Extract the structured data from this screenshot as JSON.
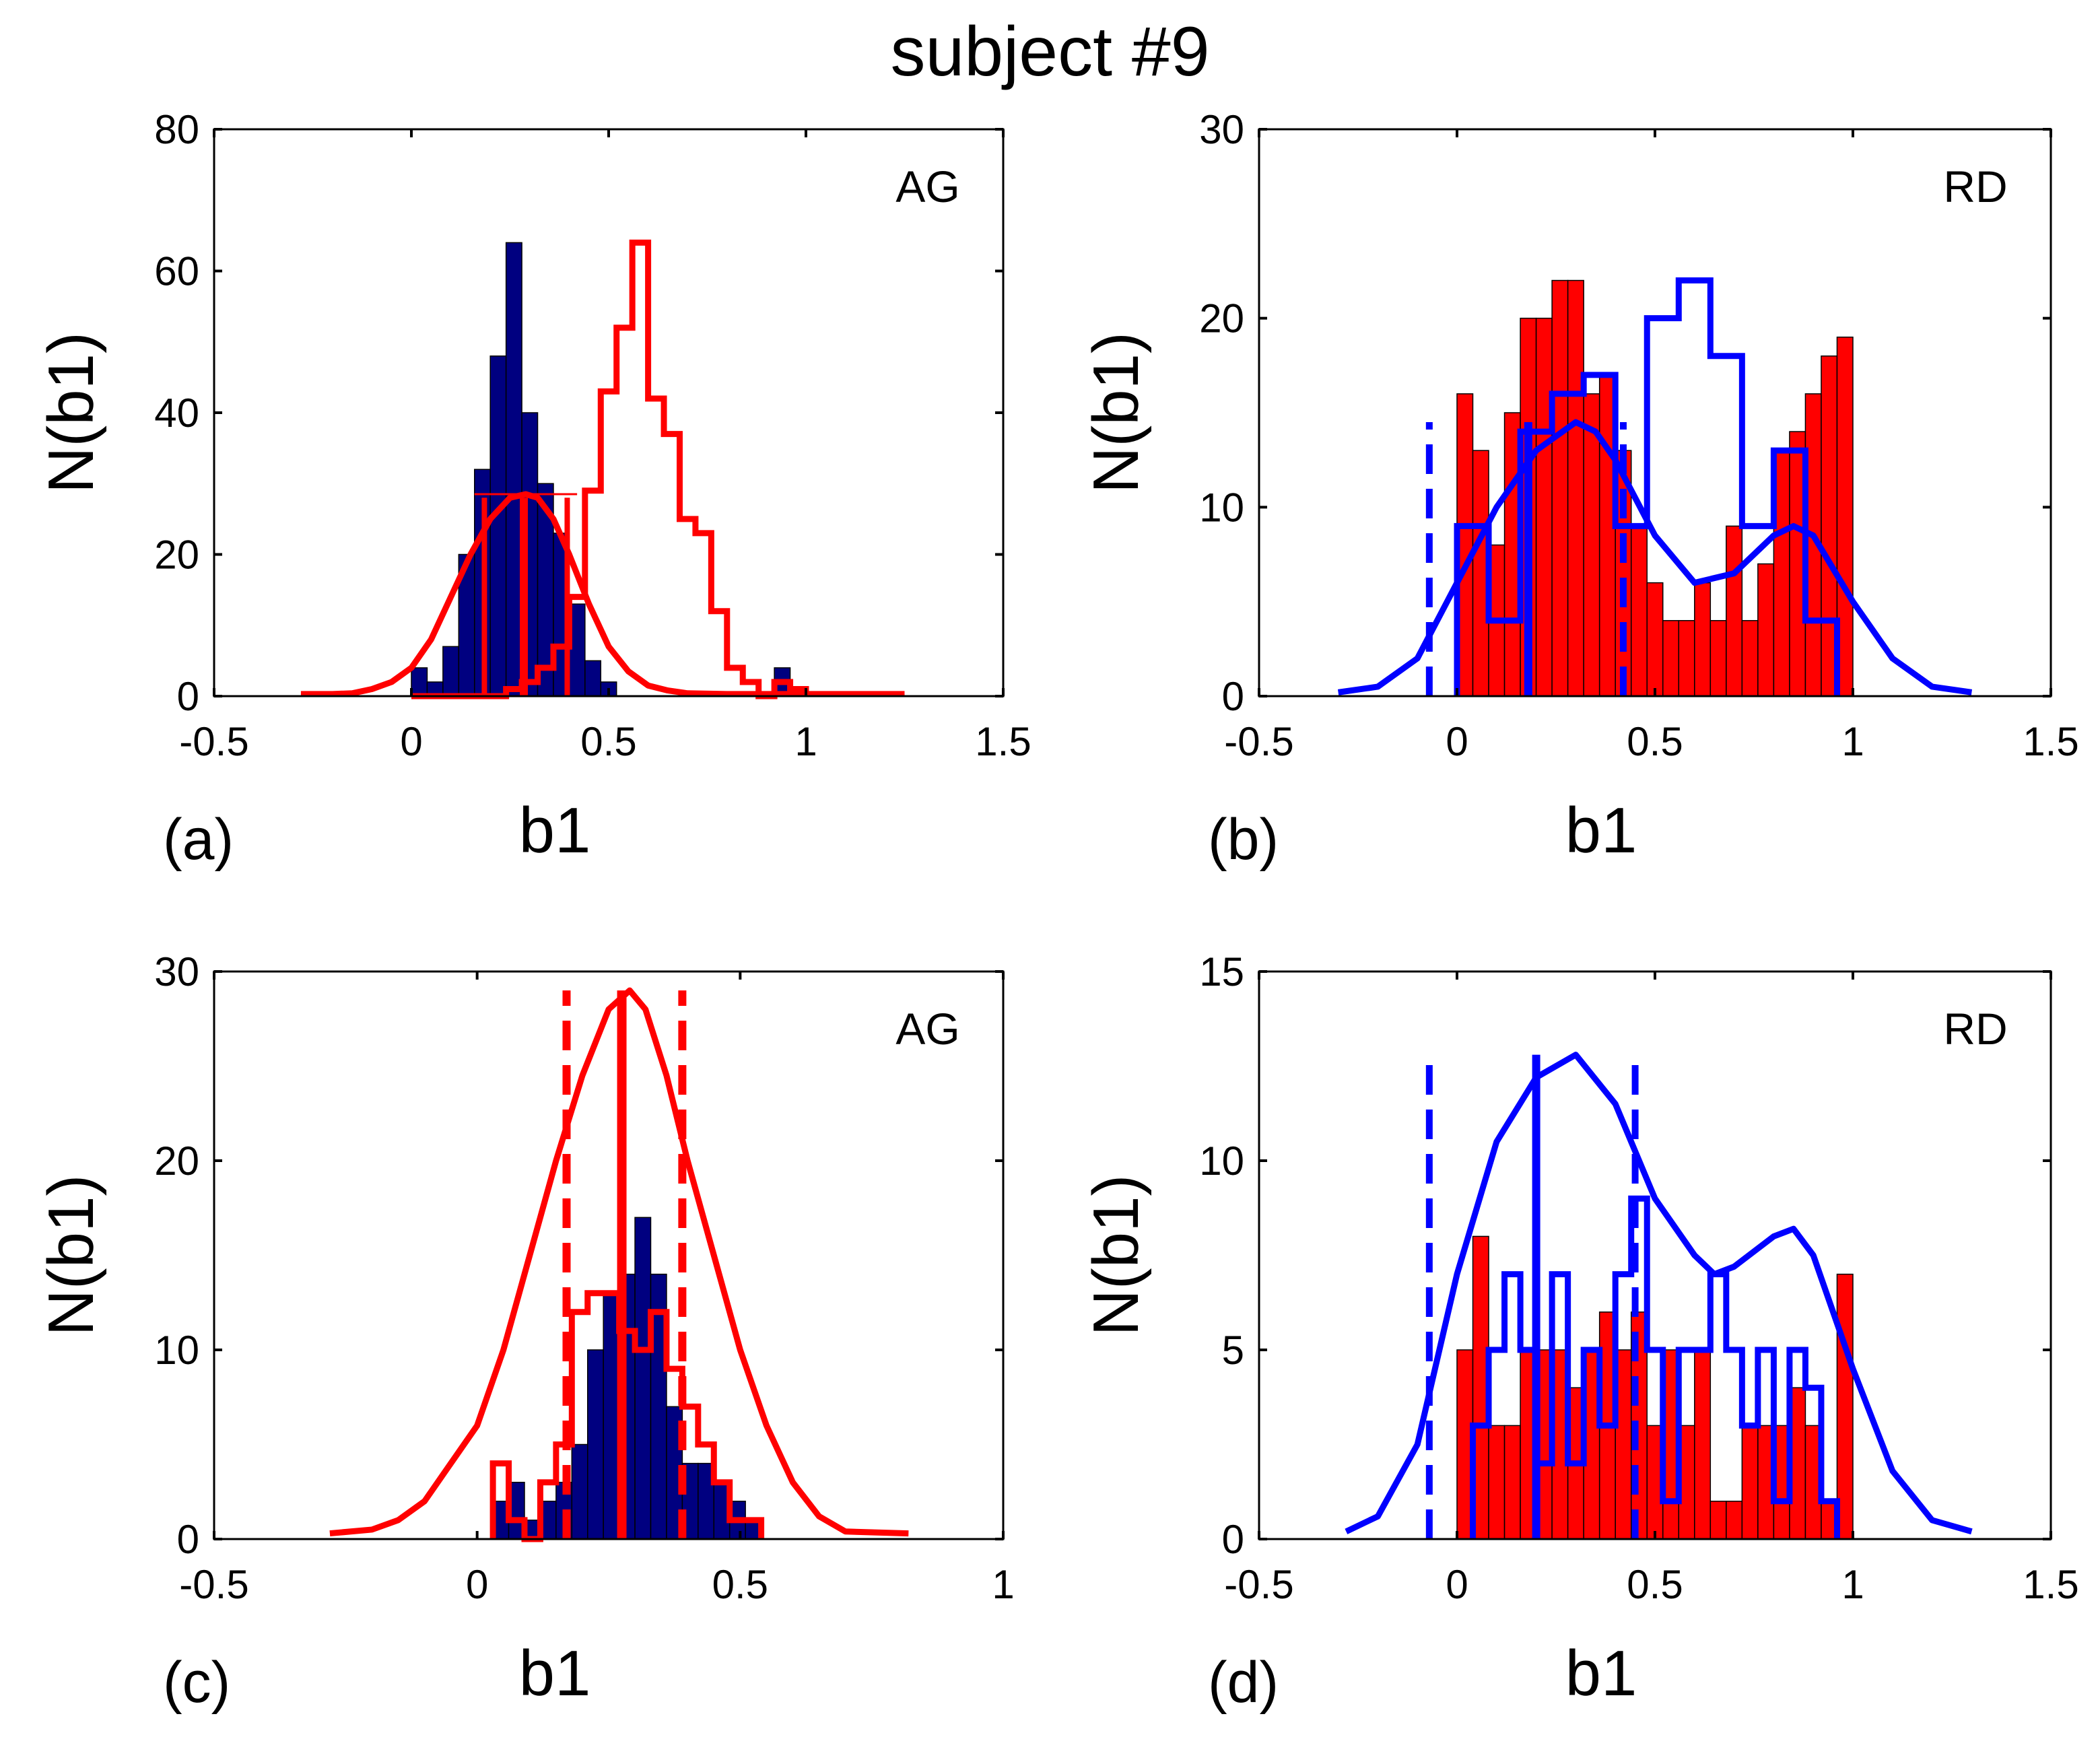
{
  "figure_title": "subject #9",
  "colors": {
    "navy": "#000080",
    "red": "#ff0000",
    "blue": "#0000ff",
    "axis": "#000000",
    "bar_edge": "#000000"
  },
  "chart_data": [
    {
      "panel_label": "(a)",
      "tag": "AG",
      "type": "histogram+line",
      "xlabel": "b1",
      "ylabel": "N(b1)",
      "xlim": [
        -0.5,
        1.5
      ],
      "ylim": [
        0,
        80
      ],
      "xticks": [
        -0.5,
        0,
        0.5,
        1,
        1.5
      ],
      "xtick_labels": [
        "-0.5",
        "0",
        "0.5",
        "1",
        "1.5"
      ],
      "yticks": [
        0,
        20,
        40,
        60,
        80
      ],
      "ytick_labels": [
        "0",
        "20",
        "40",
        "60",
        "80"
      ],
      "bars": {
        "name": "filled histogram",
        "color": "navy",
        "edges": [
          0,
          0.04,
          0.08,
          0.12,
          0.16,
          0.2,
          0.24,
          0.28,
          0.32,
          0.36,
          0.4,
          0.44,
          0.48,
          0.52,
          0.56,
          0.6,
          0.64,
          0.68,
          0.72,
          0.76,
          0.8,
          0.84,
          0.88,
          0.92,
          0.96
        ],
        "values": [
          4,
          2,
          7,
          20,
          32,
          48,
          64,
          40,
          30,
          23,
          13,
          5,
          2,
          0,
          0,
          0,
          0,
          0,
          0,
          0,
          0,
          0,
          0,
          4
        ]
      },
      "step": {
        "name": "open histogram",
        "color": "red",
        "edges": [
          0,
          0.24,
          0.28,
          0.32,
          0.36,
          0.4,
          0.44,
          0.48,
          0.52,
          0.56,
          0.6,
          0.64,
          0.68,
          0.72,
          0.76,
          0.8,
          0.84,
          0.88,
          0.92,
          0.96,
          1.0
        ],
        "values": [
          0,
          1,
          2,
          4,
          7,
          14,
          29,
          43,
          52,
          64,
          42,
          37,
          25,
          23,
          12,
          4,
          2,
          0,
          2,
          1
        ]
      },
      "curve": {
        "name": "density",
        "color": "red",
        "x": [
          -0.28,
          -0.2,
          -0.15,
          -0.1,
          -0.05,
          0.0,
          0.05,
          0.1,
          0.15,
          0.2,
          0.25,
          0.29,
          0.32,
          0.36,
          0.4,
          0.45,
          0.5,
          0.55,
          0.6,
          0.65,
          0.7,
          0.8,
          0.9,
          1.0,
          1.25
        ],
        "y": [
          0.3,
          0.3,
          0.4,
          1,
          2,
          4,
          8,
          14,
          20,
          25,
          28,
          28.5,
          28,
          25,
          20,
          13,
          7,
          3.5,
          1.5,
          0.8,
          0.4,
          0.3,
          0.3,
          0.3,
          0.3
        ]
      },
      "vlines": [
        {
          "x": 0.185,
          "y0": 0,
          "y1": 28,
          "style": "solid",
          "width": 8,
          "color": "red"
        },
        {
          "x": 0.285,
          "y0": 0,
          "y1": 28,
          "style": "solid",
          "width": 12,
          "color": "red"
        },
        {
          "x": 0.395,
          "y0": 0,
          "y1": 28,
          "style": "solid",
          "width": 8,
          "color": "red"
        }
      ],
      "hlines": [
        {
          "x0": 0.16,
          "x1": 0.42,
          "y": 28.5,
          "color": "red"
        }
      ]
    },
    {
      "panel_label": "(b)",
      "tag": "RD",
      "type": "histogram+line",
      "xlabel": "b1",
      "ylabel": "N(b1)",
      "xlim": [
        -0.5,
        1.5
      ],
      "ylim": [
        0,
        30
      ],
      "xticks": [
        -0.5,
        0,
        0.5,
        1,
        1.5
      ],
      "xtick_labels": [
        "-0.5",
        "0",
        "0.5",
        "1",
        "1.5"
      ],
      "yticks": [
        0,
        10,
        20,
        30
      ],
      "ytick_labels": [
        "0",
        "10",
        "20",
        "30"
      ],
      "bars": {
        "name": "filled histogram",
        "color": "red",
        "edges": [
          0,
          0.04,
          0.08,
          0.12,
          0.16,
          0.2,
          0.24,
          0.28,
          0.32,
          0.36,
          0.4,
          0.44,
          0.48,
          0.52,
          0.56,
          0.6,
          0.64,
          0.68,
          0.72,
          0.76,
          0.8,
          0.84,
          0.88,
          0.92,
          0.96,
          1.0
        ],
        "values": [
          16,
          13,
          8,
          15,
          20,
          20,
          22,
          22,
          16,
          17,
          13,
          9,
          6,
          4,
          4,
          6,
          4,
          9,
          4,
          7,
          13,
          14,
          16,
          18,
          19
        ]
      },
      "step": {
        "name": "open histogram",
        "color": "blue",
        "edges": [
          0,
          0.08,
          0.16,
          0.24,
          0.32,
          0.4,
          0.48,
          0.56,
          0.64,
          0.72,
          0.8,
          0.88,
          0.96
        ],
        "values": [
          9,
          4,
          14,
          16,
          17,
          9,
          20,
          22,
          18,
          9,
          13,
          4
        ]
      },
      "curve": {
        "name": "density",
        "color": "blue",
        "x": [
          -0.3,
          -0.2,
          -0.1,
          0.0,
          0.1,
          0.2,
          0.3,
          0.35,
          0.4,
          0.5,
          0.6,
          0.7,
          0.8,
          0.85,
          0.9,
          1.0,
          1.1,
          1.2,
          1.3
        ],
        "y": [
          0.2,
          0.5,
          2,
          6,
          10,
          13,
          14.5,
          14,
          12.5,
          8.5,
          6,
          6.5,
          8.5,
          9,
          8.5,
          5,
          2,
          0.5,
          0.2
        ]
      },
      "vlines": [
        {
          "x": -0.07,
          "y0": 0,
          "y1": 14.5,
          "style": "dashed",
          "width": 10,
          "color": "blue"
        },
        {
          "x": 0.18,
          "y0": 0,
          "y1": 14.5,
          "style": "solid",
          "width": 12,
          "color": "blue"
        },
        {
          "x": 0.42,
          "y0": 0,
          "y1": 14.5,
          "style": "dashed",
          "width": 10,
          "color": "blue"
        }
      ],
      "hlines": []
    },
    {
      "panel_label": "(c)",
      "tag": "AG",
      "type": "histogram+line",
      "xlabel": "b1",
      "ylabel": "N(b1)",
      "xlim": [
        -0.5,
        1
      ],
      "ylim": [
        0,
        30
      ],
      "xticks": [
        -0.5,
        0,
        0.5,
        1
      ],
      "xtick_labels": [
        "-0.5",
        "0",
        "0.5",
        "1"
      ],
      "yticks": [
        0,
        10,
        20,
        30
      ],
      "ytick_labels": [
        "0",
        "10",
        "20",
        "30"
      ],
      "bars": {
        "name": "filled histogram",
        "color": "navy",
        "edges": [
          0.03,
          0.06,
          0.09,
          0.12,
          0.15,
          0.18,
          0.21,
          0.24,
          0.27,
          0.3,
          0.33,
          0.36,
          0.39,
          0.42,
          0.45,
          0.48,
          0.51,
          0.54
        ],
        "values": [
          2,
          3,
          1,
          2,
          3,
          5,
          10,
          13,
          14,
          17,
          14,
          7,
          4,
          4,
          3,
          2,
          1
        ]
      },
      "step": {
        "name": "open histogram",
        "color": "red",
        "edges": [
          0.03,
          0.06,
          0.09,
          0.12,
          0.15,
          0.18,
          0.21,
          0.24,
          0.27,
          0.3,
          0.33,
          0.36,
          0.39,
          0.42,
          0.45,
          0.48,
          0.51,
          0.54
        ],
        "values": [
          4,
          1,
          0,
          3,
          5,
          12,
          13,
          13,
          11,
          10,
          12,
          9,
          7,
          5,
          3,
          1,
          1
        ]
      },
      "curve": {
        "name": "density",
        "color": "red",
        "x": [
          -0.28,
          -0.2,
          -0.15,
          -0.1,
          -0.05,
          0.0,
          0.05,
          0.1,
          0.15,
          0.2,
          0.25,
          0.29,
          0.32,
          0.36,
          0.4,
          0.45,
          0.5,
          0.55,
          0.6,
          0.65,
          0.7,
          0.82
        ],
        "y": [
          0.3,
          0.5,
          1,
          2,
          4,
          6,
          10,
          15,
          20,
          24.5,
          28,
          29,
          28,
          24.5,
          20,
          15,
          10,
          6,
          3,
          1.2,
          0.4,
          0.3
        ]
      },
      "vlines": [
        {
          "x": 0.17,
          "y0": 0,
          "y1": 29,
          "style": "dashed",
          "width": 12,
          "color": "red"
        },
        {
          "x": 0.275,
          "y0": 0,
          "y1": 29,
          "style": "solid",
          "width": 14,
          "color": "red"
        },
        {
          "x": 0.39,
          "y0": 0,
          "y1": 29,
          "style": "dashed",
          "width": 12,
          "color": "red"
        }
      ],
      "hlines": []
    },
    {
      "panel_label": "(d)",
      "tag": "RD",
      "type": "histogram+line",
      "xlabel": "b1",
      "ylabel": "N(b1)",
      "xlim": [
        -0.5,
        1.5
      ],
      "ylim": [
        0,
        15
      ],
      "xticks": [
        -0.5,
        0,
        0.5,
        1,
        1.5
      ],
      "xtick_labels": [
        "-0.5",
        "0",
        "0.5",
        "1",
        "1.5"
      ],
      "yticks": [
        0,
        5,
        10,
        15
      ],
      "ytick_labels": [
        "0",
        "5",
        "10",
        "15"
      ],
      "bars": {
        "name": "filled histogram",
        "color": "red",
        "edges": [
          0,
          0.04,
          0.08,
          0.12,
          0.16,
          0.2,
          0.24,
          0.28,
          0.32,
          0.36,
          0.4,
          0.44,
          0.48,
          0.52,
          0.56,
          0.6,
          0.64,
          0.68,
          0.72,
          0.76,
          0.8,
          0.84,
          0.88,
          0.92,
          0.96,
          1.0
        ],
        "values": [
          5,
          8,
          3,
          3,
          5,
          5,
          5,
          4,
          5,
          6,
          5,
          6,
          3,
          5,
          3,
          5,
          1,
          1,
          3,
          3,
          3,
          4,
          3,
          1,
          7
        ]
      },
      "step": {
        "name": "open histogram",
        "color": "blue",
        "edges": [
          0.04,
          0.08,
          0.12,
          0.16,
          0.2,
          0.24,
          0.28,
          0.32,
          0.36,
          0.4,
          0.44,
          0.48,
          0.52,
          0.56,
          0.6,
          0.64,
          0.68,
          0.72,
          0.76,
          0.8,
          0.84,
          0.88,
          0.92,
          0.96
        ],
        "values": [
          3,
          5,
          7,
          5,
          2,
          7,
          2,
          5,
          3,
          7,
          9,
          5,
          1,
          5,
          5,
          7,
          5,
          3,
          5,
          1,
          5,
          4,
          1
        ]
      },
      "curve": {
        "name": "density",
        "color": "blue",
        "x": [
          -0.28,
          -0.2,
          -0.1,
          0.0,
          0.1,
          0.2,
          0.3,
          0.4,
          0.5,
          0.6,
          0.65,
          0.7,
          0.8,
          0.85,
          0.9,
          1.0,
          1.1,
          1.2,
          1.3
        ],
        "y": [
          0.2,
          0.6,
          2.5,
          7,
          10.5,
          12.2,
          12.8,
          11.5,
          9,
          7.5,
          7,
          7.2,
          8,
          8.2,
          7.5,
          4.5,
          1.8,
          0.5,
          0.2
        ]
      },
      "vlines": [
        {
          "x": -0.07,
          "y0": 0,
          "y1": 12.8,
          "style": "dashed",
          "width": 10,
          "color": "blue"
        },
        {
          "x": 0.2,
          "y0": 0,
          "y1": 12.8,
          "style": "solid",
          "width": 12,
          "color": "blue"
        },
        {
          "x": 0.45,
          "y0": 0,
          "y1": 12.8,
          "style": "dashed",
          "width": 10,
          "color": "blue"
        }
      ],
      "hlines": []
    }
  ]
}
